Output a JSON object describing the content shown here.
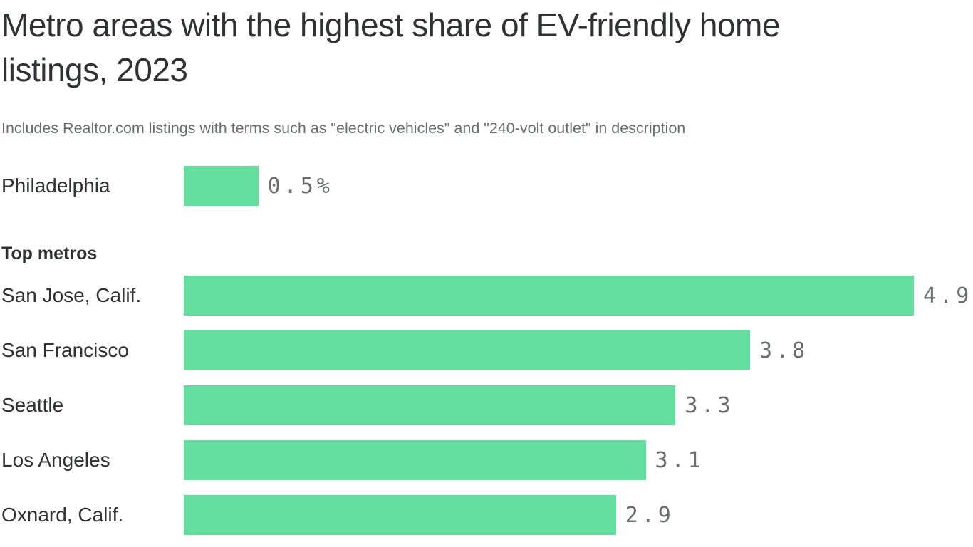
{
  "header": {
    "title": "Metro areas with the highest share of EV-friendly home listings, 2023",
    "subtitle": "Includes Realtor.com listings with terms such as \"electric vehicles\" and \"240-volt outlet\" in description"
  },
  "chart_data": {
    "type": "bar",
    "orientation": "horizontal",
    "title": "Metro areas with the highest share of EV-friendly home listings, 2023",
    "subtitle": "Includes Realtor.com listings with terms such as \"electric vehicles\" and \"240-volt outlet\" in description",
    "unit": "%",
    "xlim": [
      0,
      4.9
    ],
    "grid": false,
    "value_labels_position": "end-of-bar",
    "bar_color": "#63de9e",
    "label_color": "#2f3135",
    "value_label_color": "#696c70",
    "highlight": {
      "label": "Philadelphia",
      "value": 0.5,
      "display": "0.5%"
    },
    "section_label": "Top metros",
    "categories": [
      "San Jose, Calif.",
      "San Francisco",
      "Seattle",
      "Los Angeles",
      "Oxnard, Calif."
    ],
    "values": [
      4.9,
      3.8,
      3.3,
      3.1,
      2.9
    ],
    "value_displays": [
      "4.9",
      "3.8",
      "3.3",
      "3.1",
      "2.9"
    ]
  }
}
